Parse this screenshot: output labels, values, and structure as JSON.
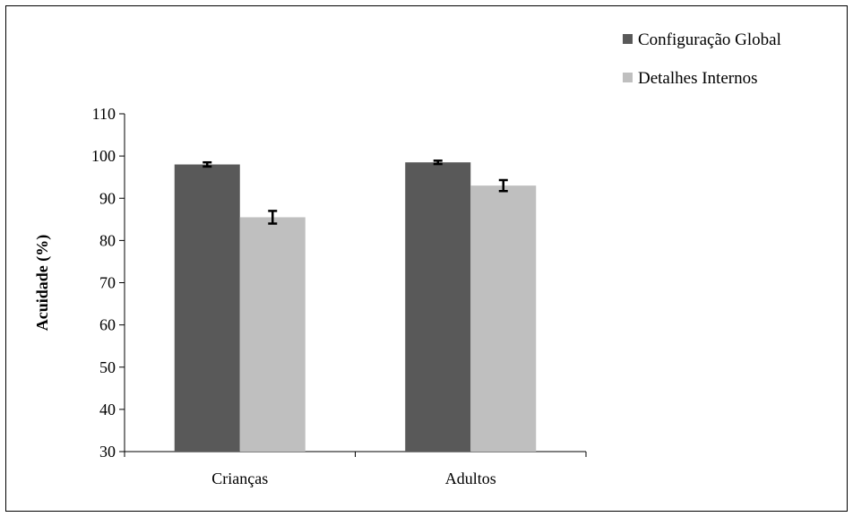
{
  "chart_data": {
    "type": "bar",
    "categories": [
      "Crianças",
      "Adultos"
    ],
    "series": [
      {
        "name": "Configuração Global",
        "color": "#595959",
        "values": [
          98.0,
          98.5
        ],
        "errors": [
          0.5,
          0.4
        ]
      },
      {
        "name": "Detalhes Internos",
        "color": "#bfbfbf",
        "values": [
          85.5,
          93.0
        ],
        "errors": [
          1.5,
          1.3
        ]
      }
    ],
    "xlabel": "",
    "ylabel": "Acuidade  (%)",
    "ylim": [
      30,
      110
    ],
    "yticks": [
      30,
      40,
      50,
      60,
      70,
      80,
      90,
      100,
      110
    ],
    "grid": false,
    "legend_position": "top-right"
  }
}
